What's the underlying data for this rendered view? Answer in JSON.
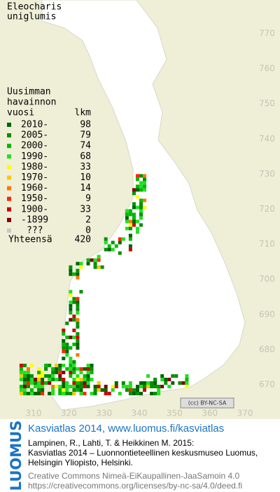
{
  "title": [
    "Eleocharis",
    "uniglumis"
  ],
  "legend": {
    "header": [
      "Uusimman",
      "havainnon",
      "vuosi",
      "lkm"
    ],
    "items": [
      {
        "label": "2010-",
        "count": 98,
        "color": "#006400"
      },
      {
        "label": "2005-",
        "count": 79,
        "color": "#009000"
      },
      {
        "label": "2000-",
        "count": 74,
        "color": "#00b800"
      },
      {
        "label": "1990-",
        "count": 68,
        "color": "#22e022"
      },
      {
        "label": "1980-",
        "count": 33,
        "color": "#ffff00"
      },
      {
        "label": "1970-",
        "count": 10,
        "color": "#ffc800"
      },
      {
        "label": "1960-",
        "count": 14,
        "color": "#ff7800"
      },
      {
        "label": "1950-",
        "count": 9,
        "color": "#ff2800"
      },
      {
        "label": "1900-",
        "count": 33,
        "color": "#cc0000"
      },
      {
        "label": "-1899",
        "count": 2,
        "color": "#800000"
      },
      {
        "label": "???",
        "count": 0,
        "color": "#c8c8c8"
      }
    ],
    "total": {
      "label": "Yhteensä",
      "count": 420
    }
  },
  "grid": {
    "y_labels": [
      770,
      760,
      750,
      740,
      730,
      720,
      710,
      700,
      690,
      680,
      670
    ],
    "x_labels": [
      310,
      320,
      330,
      340,
      350,
      360,
      370
    ]
  },
  "license_badge": "(cc) BY-NC-SA",
  "footer": {
    "logo": "LUOMUS",
    "link": "Kasviatlas 2014, www.luomus.fi/kasviatlas",
    "citation": [
      "Lampinen, R., Lahti, T. & Heikkinen M. 2015:",
      "Kasviatlas 2014 – Luonnontieteellinen keskusmuseo Luomus,",
      "Helsingin Yliopisto, Helsinki."
    ],
    "license": [
      "Creative Commons Nimeä-EiKaupallinen-JaaSamoin 4.0",
      "https://creativecommons.org/licenses/by-nc-sa/4.0/deed.fi"
    ]
  }
}
